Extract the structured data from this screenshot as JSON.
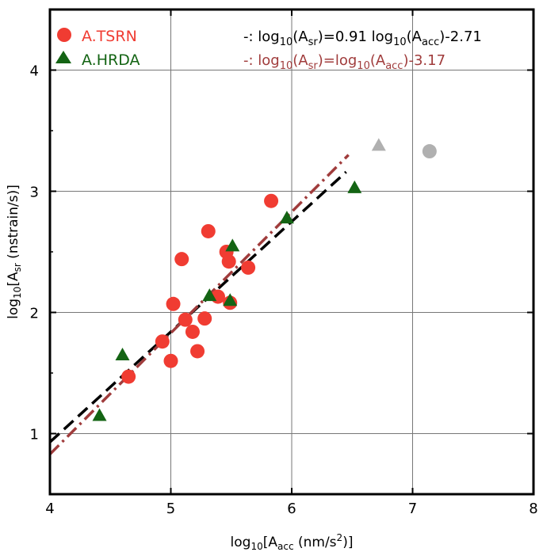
{
  "chart_data": {
    "type": "scatter",
    "title": "",
    "xlim": [
      4,
      8
    ],
    "ylim": [
      0.5,
      4.5
    ],
    "x_ticks": [
      4,
      5,
      6,
      7,
      8
    ],
    "y_ticks": [
      1,
      2,
      3,
      4
    ],
    "x_tick_labels": [
      "4",
      "5",
      "6",
      "7",
      "8"
    ],
    "y_tick_labels": [
      "1",
      "2",
      "3",
      "4"
    ],
    "xlabel": {
      "pre": "log",
      "sub1": "10",
      "mid": "[A",
      "sub2": "acc",
      "mid2": " (nm/s",
      "sup": "2",
      "post": ")]"
    },
    "ylabel": {
      "pre": "log",
      "sub1": "10",
      "mid": "[A",
      "sub2": "sr",
      "post": " (nstrain/s)]"
    },
    "grid": true,
    "legend_position": "top-left",
    "series": [
      {
        "name": "A.TSRN",
        "marker": "circle",
        "color": "#f03c32",
        "points": [
          [
            4.65,
            1.47
          ],
          [
            4.93,
            1.76
          ],
          [
            5.0,
            1.6
          ],
          [
            5.02,
            2.07
          ],
          [
            5.09,
            2.44
          ],
          [
            5.12,
            1.94
          ],
          [
            5.18,
            1.84
          ],
          [
            5.22,
            1.68
          ],
          [
            5.28,
            1.95
          ],
          [
            5.31,
            2.67
          ],
          [
            5.39,
            2.13
          ],
          [
            5.46,
            2.5
          ],
          [
            5.48,
            2.42
          ],
          [
            5.49,
            2.08
          ],
          [
            5.64,
            2.37
          ],
          [
            5.83,
            2.92
          ]
        ]
      },
      {
        "name": "A.HRDA",
        "marker": "triangle",
        "color": "#146414",
        "points": [
          [
            4.41,
            1.15
          ],
          [
            4.6,
            1.65
          ],
          [
            5.32,
            2.14
          ],
          [
            5.49,
            2.1
          ],
          [
            5.51,
            2.55
          ],
          [
            5.96,
            2.78
          ],
          [
            6.52,
            3.03
          ]
        ]
      }
    ],
    "outliers": [
      {
        "name": "excluded-triangle",
        "marker": "triangle",
        "color": "#b0b0b0",
        "point": [
          6.72,
          3.38
        ]
      },
      {
        "name": "excluded-circle",
        "marker": "circle",
        "color": "#b0b0b0",
        "point": [
          7.14,
          3.33
        ]
      }
    ],
    "fit_lines": [
      {
        "name": "fit-1",
        "slope": 0.91,
        "intercept": -2.71,
        "x_range": [
          4.0,
          6.45
        ],
        "color": "#000000",
        "style": "dashed",
        "label": {
          "prefix": "-: log",
          "t1": "(A",
          "s1": "sr",
          "t2": ")=0.91 log",
          "t3": "(A",
          "s2": "acc",
          "t4": ")-2.71",
          "base": "10"
        }
      },
      {
        "name": "fit-2",
        "slope": 1.0,
        "intercept": -3.17,
        "x_range": [
          4.0,
          6.47
        ],
        "color": "#a03c3c",
        "style": "dash-dot",
        "label": {
          "prefix": "-: log",
          "t1": "(A",
          "s1": "sr",
          "t2": ")=log",
          "t3": "(A",
          "s2": "acc",
          "t4": ")-3.17",
          "base": "10"
        }
      }
    ]
  }
}
